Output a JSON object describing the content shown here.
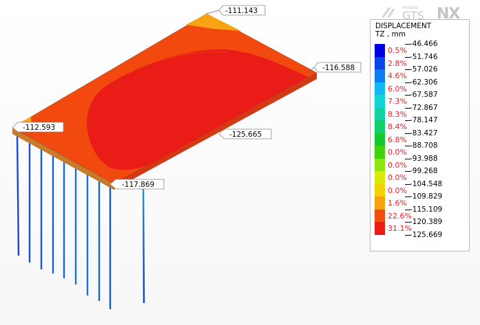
{
  "watermark": {
    "small": "midas",
    "product": "GTS",
    "suffix": "NX"
  },
  "legend": {
    "title": "DISPLACEMENT",
    "unit": "TZ , mm",
    "values": [
      "-46.466",
      "-51.746",
      "-57.026",
      "-62.306",
      "-67.587",
      "-72.867",
      "-78.147",
      "-83.427",
      "-88.708",
      "-93.988",
      "-99.268",
      "-104.548",
      "-109.829",
      "-115.109",
      "-120.389",
      "-125.669"
    ],
    "bands": [
      {
        "color": "#0000e0",
        "percent": "0.5%"
      },
      {
        "color": "#0a46ee",
        "percent": "2.8%"
      },
      {
        "color": "#0f7cf2",
        "percent": "4.6%"
      },
      {
        "color": "#12b6f2",
        "percent": "6.0%"
      },
      {
        "color": "#11d4d7",
        "percent": "7.3%"
      },
      {
        "color": "#10d3a4",
        "percent": "8.3%"
      },
      {
        "color": "#10d06b",
        "percent": "8.4%"
      },
      {
        "color": "#14c830",
        "percent": "6.8%"
      },
      {
        "color": "#40d20c",
        "percent": "0.0%"
      },
      {
        "color": "#8ce60c",
        "percent": "0.0%"
      },
      {
        "color": "#d8ea0a",
        "percent": "0.0%"
      },
      {
        "color": "#f3d20a",
        "percent": "0.0%"
      },
      {
        "color": "#f7a10e",
        "percent": "1.6%"
      },
      {
        "color": "#f24c0d",
        "percent": "22.6%"
      },
      {
        "color": "#ea1c17",
        "percent": "31.1%"
      }
    ]
  },
  "callouts": [
    {
      "label": "-111.143"
    },
    {
      "label": "-116.588"
    },
    {
      "label": "-112.593"
    },
    {
      "label": "-125.665"
    },
    {
      "label": "-117.869"
    }
  ]
}
